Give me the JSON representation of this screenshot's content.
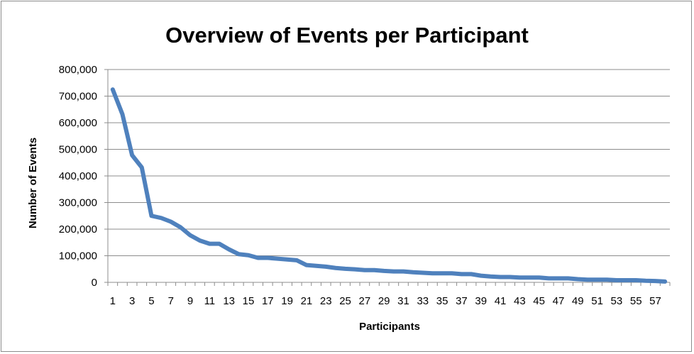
{
  "chart_data": {
    "type": "line",
    "title": "Overview of Events per Participant",
    "xlabel": "Participants",
    "ylabel": "Number of Events",
    "ylim": [
      0,
      800000
    ],
    "yticks": [
      "0",
      "100,000",
      "200,000",
      "300,000",
      "400,000",
      "500,000",
      "600,000",
      "700,000",
      "800,000"
    ],
    "grid": true,
    "legend": "none",
    "line_color": "#4f81bd",
    "x": [
      1,
      2,
      3,
      4,
      5,
      6,
      7,
      8,
      9,
      10,
      11,
      12,
      13,
      14,
      15,
      16,
      17,
      18,
      19,
      20,
      21,
      22,
      23,
      24,
      25,
      26,
      27,
      28,
      29,
      30,
      31,
      32,
      33,
      34,
      35,
      36,
      37,
      38,
      39,
      40,
      41,
      42,
      43,
      44,
      45,
      46,
      47,
      48,
      49,
      50,
      51,
      52,
      53,
      54,
      55,
      56,
      57,
      58
    ],
    "xtick_labels": [
      "1",
      "3",
      "5",
      "7",
      "9",
      "11",
      "13",
      "15",
      "17",
      "19",
      "21",
      "23",
      "25",
      "27",
      "29",
      "31",
      "33",
      "35",
      "37",
      "39",
      "41",
      "43",
      "45",
      "47",
      "49",
      "51",
      "53",
      "55",
      "57"
    ],
    "series": [
      {
        "values": [
          725000,
          632000,
          478000,
          432000,
          250000,
          242000,
          228000,
          207000,
          177000,
          157000,
          145000,
          145000,
          124000,
          106000,
          102000,
          92000,
          92000,
          89000,
          86000,
          83000,
          65000,
          62000,
          59000,
          54000,
          51000,
          49000,
          46000,
          46000,
          43000,
          41000,
          41000,
          38000,
          36000,
          34000,
          34000,
          34000,
          31000,
          31000,
          25000,
          22000,
          20000,
          20000,
          18000,
          18000,
          18000,
          15000,
          15000,
          15000,
          12000,
          10000,
          10000,
          10000,
          8000,
          8000,
          8000,
          6000,
          5000,
          3000
        ]
      }
    ]
  }
}
